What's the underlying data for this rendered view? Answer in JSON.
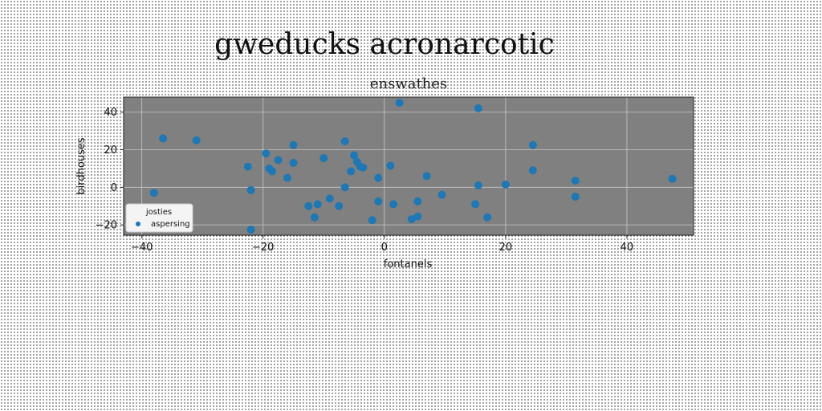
{
  "chart_data": {
    "type": "scatter",
    "suptitle": "gweducks acronarcotic",
    "title": "enswathes",
    "xlabel": "fontanels",
    "ylabel": "birdhouses",
    "xlim": [
      -43,
      51
    ],
    "ylim": [
      -25.5,
      48
    ],
    "xticks": [
      -40,
      -20,
      0,
      20,
      40
    ],
    "yticks": [
      -20,
      0,
      20,
      40
    ],
    "grid": true,
    "legend": {
      "title": "josties",
      "placement": "lower-left"
    },
    "colors": {
      "plot_bg": "#808080",
      "marker": "#1f77b4",
      "grid": "#c8c8c8"
    },
    "series": [
      {
        "name": "aspersing",
        "points": [
          [
            2.5,
            45
          ],
          [
            15.5,
            42
          ],
          [
            -36.5,
            26
          ],
          [
            -31,
            25
          ],
          [
            -6.5,
            24.5
          ],
          [
            24.5,
            22.5
          ],
          [
            -15,
            22.5
          ],
          [
            -19.5,
            18
          ],
          [
            -5,
            17
          ],
          [
            -10,
            15.5
          ],
          [
            -17.5,
            14.5
          ],
          [
            -4.5,
            13.5
          ],
          [
            -15,
            13
          ],
          [
            -4,
            11
          ],
          [
            -3.5,
            10.5
          ],
          [
            1,
            11.5
          ],
          [
            -22.5,
            11
          ],
          [
            -19,
            10
          ],
          [
            -18.5,
            8.5
          ],
          [
            -5.5,
            8.5
          ],
          [
            24.5,
            9
          ],
          [
            7,
            6
          ],
          [
            -16,
            5
          ],
          [
            -1,
            5
          ],
          [
            47.5,
            4.5
          ],
          [
            31.5,
            3.5
          ],
          [
            15.5,
            1
          ],
          [
            20,
            1.5
          ],
          [
            -6.5,
            0
          ],
          [
            -22,
            -1.5
          ],
          [
            -38,
            -3
          ],
          [
            9.5,
            -4
          ],
          [
            31.5,
            -5
          ],
          [
            -9,
            -6
          ],
          [
            -1,
            -7.5
          ],
          [
            5.5,
            -7.5
          ],
          [
            -11,
            -9
          ],
          [
            1.5,
            -9
          ],
          [
            15,
            -9
          ],
          [
            -7.5,
            -10
          ],
          [
            -12.5,
            -10
          ],
          [
            5.5,
            -15.5
          ],
          [
            -11.5,
            -16
          ],
          [
            17,
            -16
          ],
          [
            4.5,
            -17
          ],
          [
            -2,
            -17.5
          ],
          [
            -22,
            -22.5
          ]
        ]
      }
    ]
  }
}
